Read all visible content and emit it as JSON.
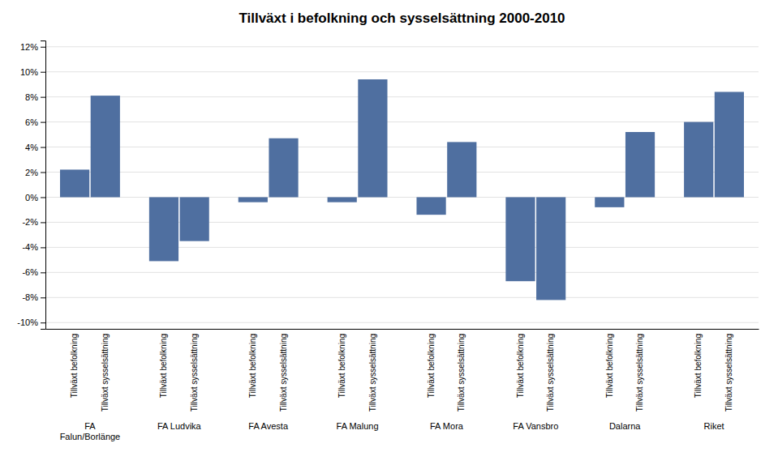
{
  "chart_data": {
    "type": "bar",
    "title": "Tillväxt i befolkning och sysselsättning 2000-2010",
    "categories": [
      "FA\nFalun/Borlänge",
      "FA Ludvika",
      "FA Avesta",
      "FA Malung",
      "FA Mora",
      "FA Vansbro",
      "Dalarna",
      "Riket"
    ],
    "series": [
      {
        "name": "Tillväxt befolkning",
        "values": [
          0.022,
          -0.051,
          -0.004,
          -0.004,
          -0.014,
          -0.067,
          -0.008,
          0.06
        ]
      },
      {
        "name": "Tillväxt sysselsättning",
        "values": [
          0.081,
          -0.035,
          0.047,
          0.094,
          0.044,
          -0.082,
          0.052,
          0.084
        ]
      }
    ],
    "color": "#4F6FA0",
    "ylim": [
      -0.105,
      0.125
    ],
    "yticks": [
      {
        "value": -0.1,
        "label": "-10%"
      },
      {
        "value": -0.08,
        "label": "-8%"
      },
      {
        "value": -0.06,
        "label": "-6%"
      },
      {
        "value": -0.04,
        "label": "-4%"
      },
      {
        "value": -0.02,
        "label": "-2%"
      },
      {
        "value": 0.0,
        "label": "0%"
      },
      {
        "value": 0.02,
        "label": "2%"
      },
      {
        "value": 0.04,
        "label": "4%"
      },
      {
        "value": 0.06,
        "label": "6%"
      },
      {
        "value": 0.08,
        "label": "8%"
      },
      {
        "value": 0.1,
        "label": "10%"
      },
      {
        "value": 0.12,
        "label": "12%"
      }
    ],
    "grid": true
  }
}
